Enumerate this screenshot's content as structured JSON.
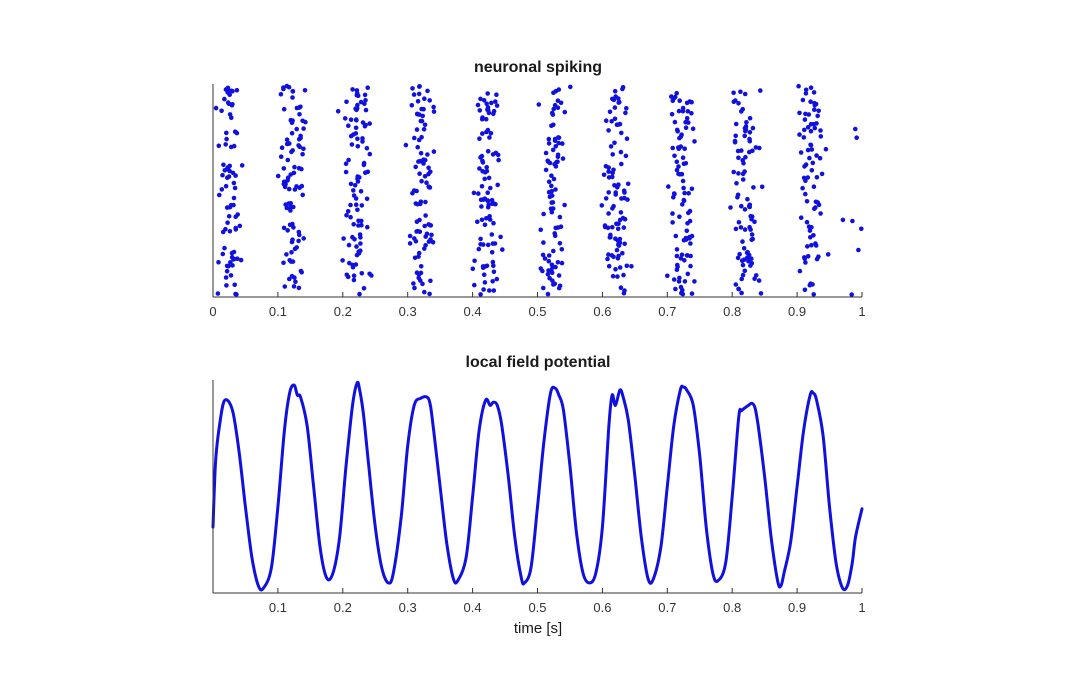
{
  "chart_data": [
    {
      "type": "scatter",
      "title": "neuronal spiking",
      "xlabel": "",
      "ylabel": "",
      "xlim": [
        0,
        1
      ],
      "xticks": [
        "0",
        "0.1",
        "0.2",
        "0.3",
        "0.4",
        "0.5",
        "0.6",
        "0.7",
        "0.8",
        "0.9",
        "1"
      ],
      "yticks": [],
      "grid": false,
      "color": "#1010e0",
      "bursts": [
        {
          "center": 0.025,
          "count": 80
        },
        {
          "center": 0.122,
          "count": 92
        },
        {
          "center": 0.222,
          "count": 95
        },
        {
          "center": 0.322,
          "count": 92
        },
        {
          "center": 0.422,
          "count": 95
        },
        {
          "center": 0.522,
          "count": 88
        },
        {
          "center": 0.622,
          "count": 95
        },
        {
          "center": 0.722,
          "count": 95
        },
        {
          "center": 0.822,
          "count": 90
        },
        {
          "center": 0.922,
          "count": 80
        },
        {
          "center": 0.995,
          "count": 12
        }
      ]
    },
    {
      "type": "line",
      "title": "local field potential",
      "xlabel": "time [s]",
      "ylabel": "",
      "xlim": [
        0,
        1
      ],
      "ylim": [
        -1.05,
        1.05
      ],
      "xticks": [
        "0.1",
        "0.2",
        "0.3",
        "0.4",
        "0.5",
        "0.6",
        "0.7",
        "0.8",
        "0.9",
        "1"
      ],
      "yticks": [],
      "grid": false,
      "color": "#1010e0",
      "series": [
        {
          "x": [
            0,
            0.004,
            0.01,
            0.018,
            0.03,
            0.04,
            0.05,
            0.06,
            0.07,
            0.078,
            0.09,
            0.1,
            0.11,
            0.118,
            0.125,
            0.13,
            0.135,
            0.145,
            0.155,
            0.165,
            0.175,
            0.185,
            0.195,
            0.205,
            0.215,
            0.222,
            0.226,
            0.232,
            0.24,
            0.25,
            0.26,
            0.27,
            0.278,
            0.29,
            0.3,
            0.31,
            0.32,
            0.33,
            0.335,
            0.34,
            0.35,
            0.36,
            0.37,
            0.377,
            0.39,
            0.4,
            0.41,
            0.42,
            0.427,
            0.432,
            0.438,
            0.445,
            0.455,
            0.465,
            0.475,
            0.48,
            0.49,
            0.5,
            0.51,
            0.52,
            0.527,
            0.533,
            0.54,
            0.55,
            0.56,
            0.57,
            0.58,
            0.59,
            0.6,
            0.61,
            0.615,
            0.62,
            0.627,
            0.632,
            0.64,
            0.65,
            0.66,
            0.67,
            0.678,
            0.69,
            0.7,
            0.71,
            0.72,
            0.725,
            0.73,
            0.74,
            0.75,
            0.76,
            0.77,
            0.778,
            0.79,
            0.8,
            0.81,
            0.815,
            0.825,
            0.83,
            0.835,
            0.84,
            0.85,
            0.86,
            0.87,
            0.875,
            0.88,
            0.89,
            0.9,
            0.91,
            0.92,
            0.925,
            0.93,
            0.94,
            0.95,
            0.96,
            0.97,
            0.978,
            0.985,
            0.99,
            1
          ],
          "y": [
            -0.4,
            0.25,
            0.6,
            0.85,
            0.75,
            0.35,
            -0.2,
            -0.7,
            -0.98,
            -1.0,
            -0.8,
            -0.2,
            0.55,
            0.92,
            1.0,
            0.9,
            0.88,
            0.6,
            0.0,
            -0.6,
            -0.9,
            -0.85,
            -0.5,
            0.2,
            0.8,
            1.02,
            0.95,
            0.7,
            0.2,
            -0.4,
            -0.8,
            -0.95,
            -0.85,
            -0.3,
            0.4,
            0.8,
            0.87,
            0.88,
            0.8,
            0.55,
            0.0,
            -0.55,
            -0.9,
            -0.93,
            -0.7,
            -0.1,
            0.55,
            0.85,
            0.8,
            0.83,
            0.8,
            0.6,
            0.1,
            -0.5,
            -0.9,
            -0.95,
            -0.8,
            -0.2,
            0.45,
            0.92,
            0.97,
            0.9,
            0.75,
            0.2,
            -0.45,
            -0.85,
            -0.95,
            -0.85,
            -0.4,
            0.6,
            0.9,
            0.8,
            0.95,
            0.88,
            0.65,
            0.1,
            -0.5,
            -0.9,
            -0.92,
            -0.6,
            0.0,
            0.6,
            0.95,
            0.98,
            0.95,
            0.8,
            0.3,
            -0.4,
            -0.85,
            -0.93,
            -0.75,
            -0.1,
            0.68,
            0.75,
            0.8,
            0.82,
            0.78,
            0.6,
            0.1,
            -0.5,
            -0.93,
            -0.98,
            -0.85,
            -0.55,
            0.0,
            0.55,
            0.9,
            0.92,
            0.85,
            0.5,
            -0.2,
            -0.75,
            -1.0,
            -0.97,
            -0.75,
            -0.5,
            -0.22
          ]
        }
      ]
    }
  ]
}
